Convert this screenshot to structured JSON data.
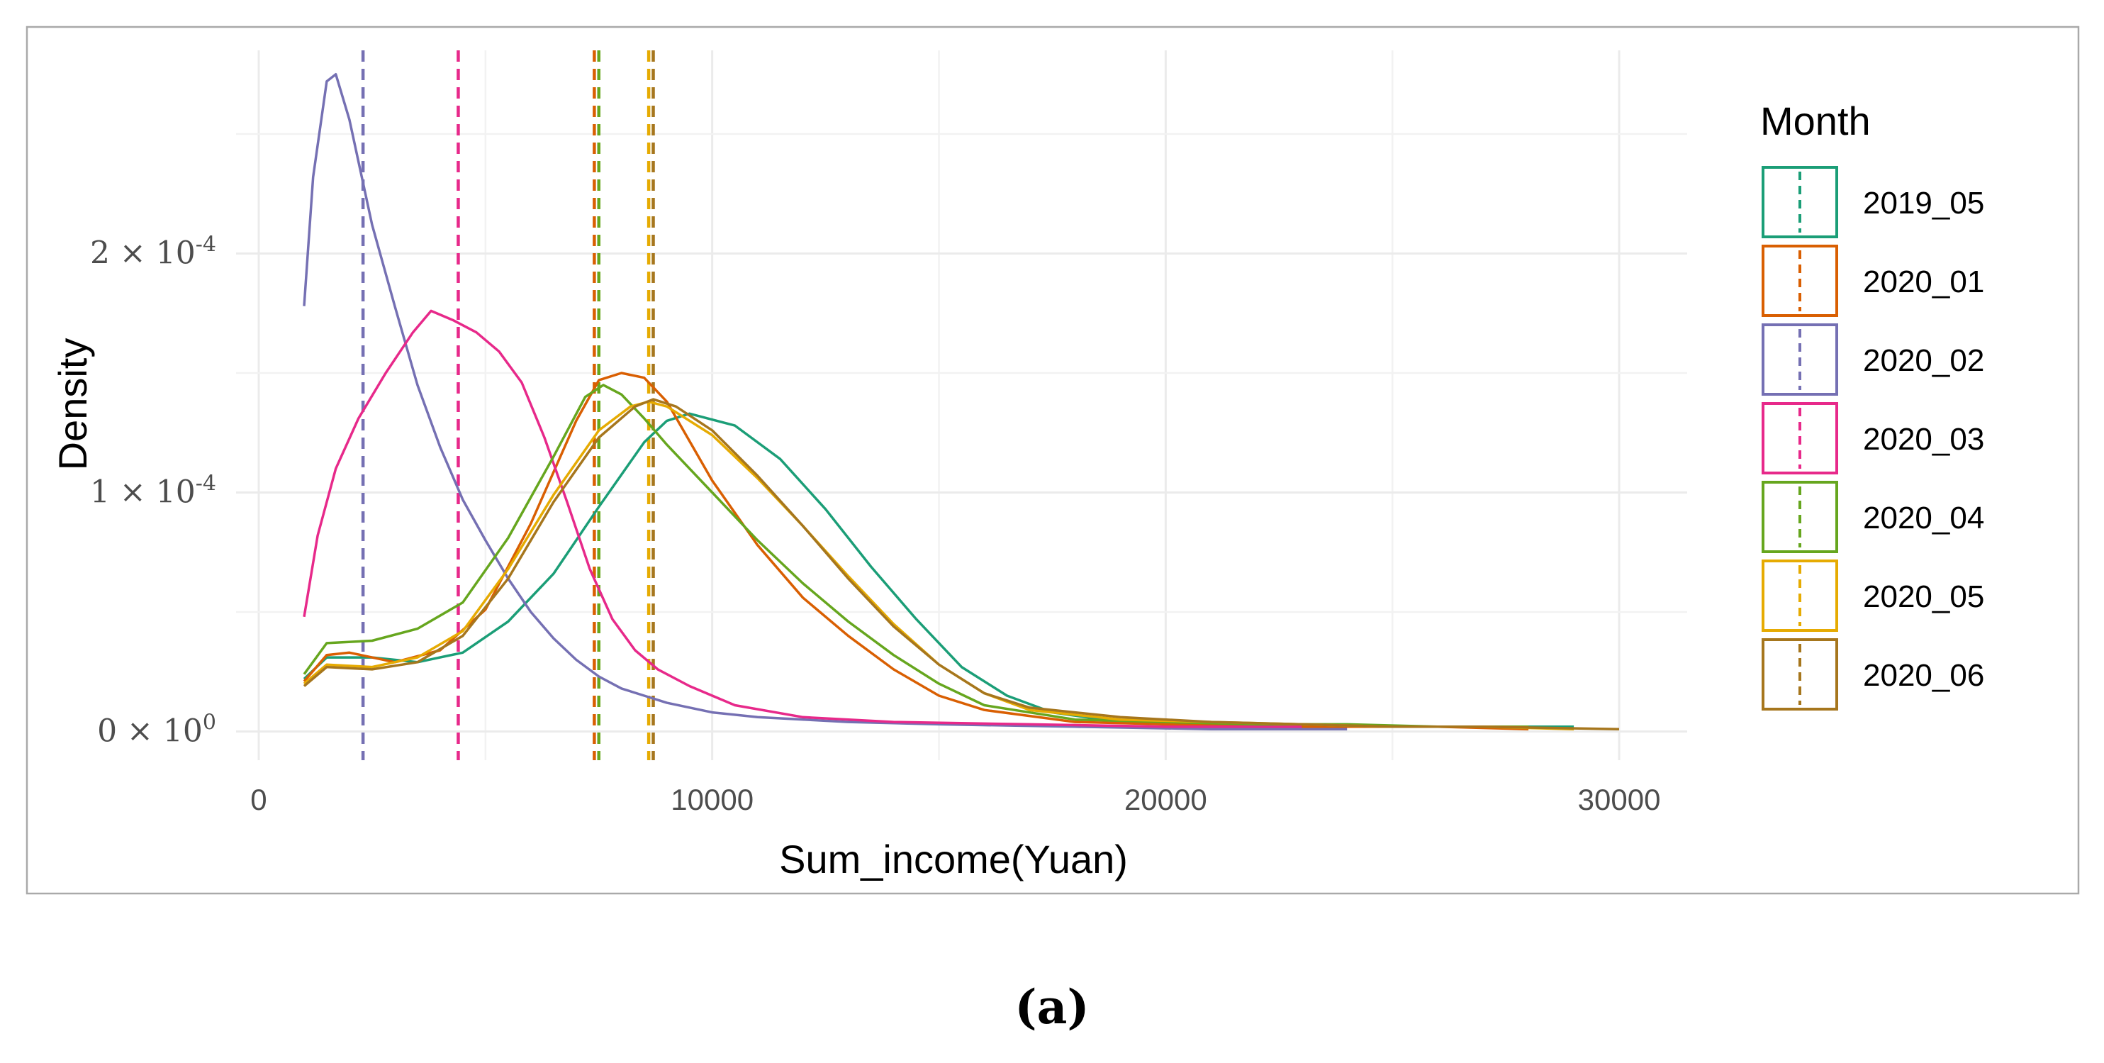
{
  "chart_data": {
    "type": "line",
    "title": "",
    "xlabel": "Sum_income(Yuan)",
    "ylabel": "Density",
    "xlim": [
      -500,
      31500
    ],
    "ylim": [
      -1.2e-05,
      0.000285
    ],
    "x_ticks": [
      0,
      10000,
      20000,
      30000
    ],
    "x_tick_labels": [
      "0",
      "10000",
      "20000",
      "30000"
    ],
    "y_ticks": [
      0,
      0.0001,
      0.0002
    ],
    "y_tick_labels": [
      {
        "base": "0 × 10",
        "exp": "0"
      },
      {
        "base": "1 × 10",
        "exp": "-4"
      },
      {
        "base": "2 × 10",
        "exp": "-4"
      }
    ],
    "grid": true,
    "legend": {
      "title": "Month",
      "position": "right"
    },
    "series": [
      {
        "name": "2019_05",
        "color": "#1b9e77",
        "mean": 7500,
        "points": [
          [
            1000,
            2.2e-05
          ],
          [
            1500,
            3.1e-05
          ],
          [
            2500,
            3.1e-05
          ],
          [
            3500,
            2.9e-05
          ],
          [
            4500,
            3.3e-05
          ],
          [
            5500,
            4.6e-05
          ],
          [
            6500,
            6.6e-05
          ],
          [
            7500,
            9.4e-05
          ],
          [
            8500,
            0.000121
          ],
          [
            9000,
            0.00013
          ],
          [
            9500,
            0.000133
          ],
          [
            10500,
            0.000128
          ],
          [
            11500,
            0.000114
          ],
          [
            12500,
            9.3e-05
          ],
          [
            13500,
            6.9e-05
          ],
          [
            14500,
            4.7e-05
          ],
          [
            15500,
            2.7e-05
          ],
          [
            16500,
            1.5e-05
          ],
          [
            17500,
            8e-06
          ],
          [
            19000,
            4e-06
          ],
          [
            21000,
            3e-06
          ],
          [
            23000,
            2e-06
          ],
          [
            25000,
            2e-06
          ],
          [
            27000,
            2e-06
          ],
          [
            29000,
            2e-06
          ]
        ]
      },
      {
        "name": "2020_01",
        "color": "#d95f02",
        "mean": 7400,
        "points": [
          [
            1000,
            2.1e-05
          ],
          [
            1500,
            3.2e-05
          ],
          [
            2000,
            3.3e-05
          ],
          [
            3000,
            2.9e-05
          ],
          [
            4000,
            3.4e-05
          ],
          [
            5000,
            5.1e-05
          ],
          [
            6000,
            8.7e-05
          ],
          [
            7000,
            0.00013
          ],
          [
            7500,
            0.000147
          ],
          [
            8000,
            0.00015
          ],
          [
            8500,
            0.000148
          ],
          [
            9000,
            0.000138
          ],
          [
            10000,
            0.000105
          ],
          [
            11000,
            7.8e-05
          ],
          [
            12000,
            5.6e-05
          ],
          [
            13000,
            4e-05
          ],
          [
            14000,
            2.6e-05
          ],
          [
            15000,
            1.5e-05
          ],
          [
            16000,
            9e-06
          ],
          [
            18000,
            4e-06
          ],
          [
            20000,
            3e-06
          ],
          [
            22000,
            2e-06
          ],
          [
            24000,
            2e-06
          ],
          [
            26000,
            2e-06
          ],
          [
            28000,
            1e-06
          ]
        ]
      },
      {
        "name": "2020_02",
        "color": "#7570b3",
        "mean": 2300,
        "points": [
          [
            1000,
            0.000178
          ],
          [
            1200,
            0.000232
          ],
          [
            1500,
            0.000272
          ],
          [
            1700,
            0.000275
          ],
          [
            2000,
            0.000256
          ],
          [
            2500,
            0.000212
          ],
          [
            3000,
            0.000178
          ],
          [
            3500,
            0.000145
          ],
          [
            4000,
            0.000119
          ],
          [
            4500,
            9.7e-05
          ],
          [
            5000,
            8e-05
          ],
          [
            5500,
            6.4e-05
          ],
          [
            6000,
            5e-05
          ],
          [
            6500,
            3.9e-05
          ],
          [
            7000,
            3e-05
          ],
          [
            7500,
            2.3e-05
          ],
          [
            8000,
            1.8e-05
          ],
          [
            8500,
            1.5e-05
          ],
          [
            9000,
            1.2e-05
          ],
          [
            10000,
            8e-06
          ],
          [
            11000,
            6e-06
          ],
          [
            13000,
            4e-06
          ],
          [
            15000,
            3e-06
          ],
          [
            18000,
            2e-06
          ],
          [
            21000,
            1e-06
          ],
          [
            24000,
            1e-06
          ]
        ]
      },
      {
        "name": "2020_03",
        "color": "#e7298a",
        "mean": 4400,
        "points": [
          [
            1000,
            4.8e-05
          ],
          [
            1300,
            8.2e-05
          ],
          [
            1700,
            0.00011
          ],
          [
            2200,
            0.000131
          ],
          [
            2800,
            0.00015
          ],
          [
            3400,
            0.000167
          ],
          [
            3800,
            0.000176
          ],
          [
            4300,
            0.000172
          ],
          [
            4800,
            0.000167
          ],
          [
            5300,
            0.000159
          ],
          [
            5800,
            0.000146
          ],
          [
            6300,
            0.000123
          ],
          [
            6800,
            9.6e-05
          ],
          [
            7300,
            6.8e-05
          ],
          [
            7800,
            4.7e-05
          ],
          [
            8300,
            3.4e-05
          ],
          [
            8800,
            2.6e-05
          ],
          [
            9500,
            1.9e-05
          ],
          [
            10500,
            1.1e-05
          ],
          [
            12000,
            6e-06
          ],
          [
            14000,
            4e-06
          ],
          [
            17000,
            3e-06
          ],
          [
            20000,
            2e-06
          ],
          [
            23000,
            2e-06
          ]
        ]
      },
      {
        "name": "2020_04",
        "color": "#66a61e",
        "mean": 7500,
        "points": [
          [
            1000,
            2.4e-05
          ],
          [
            1500,
            3.7e-05
          ],
          [
            2500,
            3.8e-05
          ],
          [
            3500,
            4.3e-05
          ],
          [
            4500,
            5.4e-05
          ],
          [
            5500,
            8.1e-05
          ],
          [
            6500,
            0.000115
          ],
          [
            7200,
            0.00014
          ],
          [
            7600,
            0.000145
          ],
          [
            8000,
            0.000141
          ],
          [
            8500,
            0.000131
          ],
          [
            9000,
            0.00012
          ],
          [
            10000,
            0.0001
          ],
          [
            11000,
            8e-05
          ],
          [
            12000,
            6.2e-05
          ],
          [
            13000,
            4.6e-05
          ],
          [
            14000,
            3.2e-05
          ],
          [
            15000,
            2e-05
          ],
          [
            16000,
            1.1e-05
          ],
          [
            18000,
            5e-06
          ],
          [
            20000,
            4e-06
          ],
          [
            22000,
            3e-06
          ],
          [
            24000,
            3e-06
          ],
          [
            26000,
            2e-06
          ],
          [
            28000,
            2e-06
          ]
        ]
      },
      {
        "name": "2020_05",
        "color": "#e6ab02",
        "mean": 8600,
        "points": [
          [
            1000,
            2e-05
          ],
          [
            1500,
            2.8e-05
          ],
          [
            2500,
            2.7e-05
          ],
          [
            3500,
            3.1e-05
          ],
          [
            4500,
            4.2e-05
          ],
          [
            5500,
            6.8e-05
          ],
          [
            6500,
            9.9e-05
          ],
          [
            7500,
            0.000126
          ],
          [
            8200,
            0.000136
          ],
          [
            8600,
            0.000138
          ],
          [
            9000,
            0.000136
          ],
          [
            10000,
            0.000124
          ],
          [
            11000,
            0.000106
          ],
          [
            12000,
            8.6e-05
          ],
          [
            13000,
            6.5e-05
          ],
          [
            14000,
            4.5e-05
          ],
          [
            15000,
            2.8e-05
          ],
          [
            16000,
            1.6e-05
          ],
          [
            17000,
            9e-06
          ],
          [
            19000,
            5e-06
          ],
          [
            21000,
            4e-06
          ],
          [
            23000,
            3e-06
          ],
          [
            25000,
            2e-06
          ],
          [
            27000,
            2e-06
          ],
          [
            29000,
            1e-06
          ]
        ]
      },
      {
        "name": "2020_06",
        "color": "#a6761d",
        "mean": 8700,
        "points": [
          [
            1000,
            1.9e-05
          ],
          [
            1500,
            2.7e-05
          ],
          [
            2500,
            2.6e-05
          ],
          [
            3500,
            2.9e-05
          ],
          [
            4500,
            4e-05
          ],
          [
            5500,
            6.4e-05
          ],
          [
            6500,
            9.6e-05
          ],
          [
            7500,
            0.000123
          ],
          [
            8300,
            0.000136
          ],
          [
            8700,
            0.000139
          ],
          [
            9200,
            0.000136
          ],
          [
            10000,
            0.000126
          ],
          [
            11000,
            0.000107
          ],
          [
            12000,
            8.6e-05
          ],
          [
            13000,
            6.4e-05
          ],
          [
            14000,
            4.4e-05
          ],
          [
            15000,
            2.8e-05
          ],
          [
            16000,
            1.6e-05
          ],
          [
            17000,
            1e-05
          ],
          [
            19000,
            6e-06
          ],
          [
            21000,
            4e-06
          ],
          [
            23000,
            3e-06
          ],
          [
            25000,
            2e-06
          ],
          [
            27000,
            2e-06
          ],
          [
            30000,
            1e-06
          ]
        ]
      }
    ]
  },
  "caption": "(a)"
}
